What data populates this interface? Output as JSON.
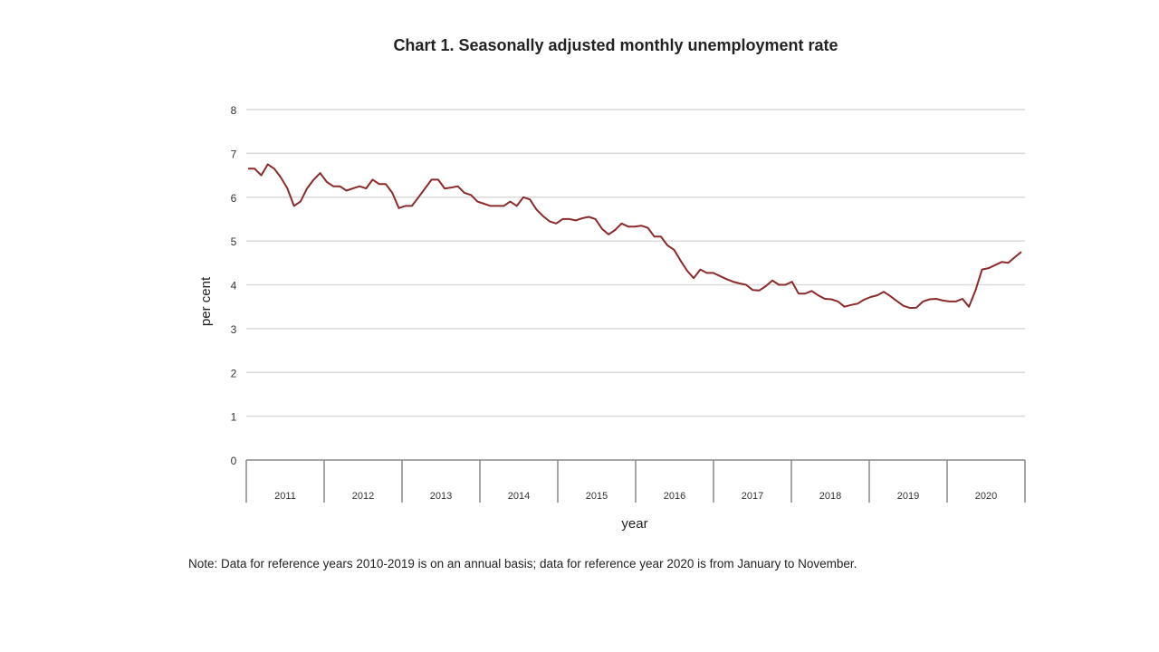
{
  "chart_data": {
    "type": "line",
    "title": "Chart 1. Seasonally adjusted monthly unemployment rate",
    "xlabel": "year",
    "ylabel": "per cent",
    "ylim": [
      0,
      8
    ],
    "yticks": [
      "0",
      "1",
      "2",
      "3",
      "4",
      "5",
      "6",
      "7",
      "8"
    ],
    "categories": [
      "2011",
      "2012",
      "2013",
      "2014",
      "2015",
      "2016",
      "2017",
      "2018",
      "2019",
      "2020"
    ],
    "grid": true,
    "legend": "none",
    "line_color": "#8b2a2a",
    "x": [
      "2011-01",
      "2011-02",
      "2011-03",
      "2011-04",
      "2011-05",
      "2011-06",
      "2011-07",
      "2011-08",
      "2011-09",
      "2011-10",
      "2011-11",
      "2011-12",
      "2012-01",
      "2012-02",
      "2012-03",
      "2012-04",
      "2012-05",
      "2012-06",
      "2012-07",
      "2012-08",
      "2012-09",
      "2012-10",
      "2012-11",
      "2012-12",
      "2013-01",
      "2013-02",
      "2013-03",
      "2013-04",
      "2013-05",
      "2013-06",
      "2013-07",
      "2013-08",
      "2013-09",
      "2013-10",
      "2013-11",
      "2013-12",
      "2014-01",
      "2014-02",
      "2014-03",
      "2014-04",
      "2014-05",
      "2014-06",
      "2014-07",
      "2014-08",
      "2014-09",
      "2014-10",
      "2014-11",
      "2014-12",
      "2015-01",
      "2015-02",
      "2015-03",
      "2015-04",
      "2015-05",
      "2015-06",
      "2015-07",
      "2015-08",
      "2015-09",
      "2015-10",
      "2015-11",
      "2015-12",
      "2016-01",
      "2016-02",
      "2016-03",
      "2016-04",
      "2016-05",
      "2016-06",
      "2016-07",
      "2016-08",
      "2016-09",
      "2016-10",
      "2016-11",
      "2016-12",
      "2017-01",
      "2017-02",
      "2017-03",
      "2017-04",
      "2017-05",
      "2017-06",
      "2017-07",
      "2017-08",
      "2017-09",
      "2017-10",
      "2017-11",
      "2017-12",
      "2018-01",
      "2018-02",
      "2018-03",
      "2018-04",
      "2018-05",
      "2018-06",
      "2018-07",
      "2018-08",
      "2018-09",
      "2018-10",
      "2018-11",
      "2018-12",
      "2019-01",
      "2019-02",
      "2019-03",
      "2019-04",
      "2019-05",
      "2019-06",
      "2019-07",
      "2019-08",
      "2019-09",
      "2019-10",
      "2019-11",
      "2019-12",
      "2020-01",
      "2020-02",
      "2020-03",
      "2020-04",
      "2020-05",
      "2020-06",
      "2020-07",
      "2020-08",
      "2020-09",
      "2020-10",
      "2020-11"
    ],
    "values": [
      6.65,
      6.65,
      6.5,
      6.75,
      6.65,
      6.45,
      6.2,
      5.8,
      5.9,
      6.2,
      6.4,
      6.55,
      6.35,
      6.25,
      6.25,
      6.15,
      6.2,
      6.25,
      6.2,
      6.4,
      6.3,
      6.3,
      6.1,
      5.75,
      5.8,
      5.8,
      6.0,
      6.2,
      6.4,
      6.4,
      6.2,
      6.22,
      6.25,
      6.1,
      6.05,
      5.9,
      5.85,
      5.8,
      5.8,
      5.8,
      5.9,
      5.8,
      6.0,
      5.95,
      5.72,
      5.57,
      5.45,
      5.4,
      5.5,
      5.5,
      5.47,
      5.52,
      5.55,
      5.5,
      5.28,
      5.15,
      5.25,
      5.4,
      5.33,
      5.33,
      5.35,
      5.3,
      5.1,
      5.1,
      4.9,
      4.8,
      4.55,
      4.32,
      4.15,
      4.35,
      4.27,
      4.27,
      4.2,
      4.13,
      4.07,
      4.03,
      4.0,
      3.88,
      3.87,
      3.97,
      4.1,
      4.0,
      4.0,
      4.07,
      3.8,
      3.8,
      3.86,
      3.76,
      3.68,
      3.67,
      3.62,
      3.5,
      3.54,
      3.57,
      3.66,
      3.72,
      3.76,
      3.84,
      3.74,
      3.63,
      3.52,
      3.47,
      3.48,
      3.62,
      3.67,
      3.68,
      3.64,
      3.62,
      3.62,
      3.68,
      3.5,
      3.87,
      4.35,
      4.38,
      4.45,
      4.52,
      4.5,
      4.63,
      4.75
    ]
  },
  "note": "Note: Data for reference years 2010-2019 is on an annual basis; data for reference year 2020 is from January to November."
}
